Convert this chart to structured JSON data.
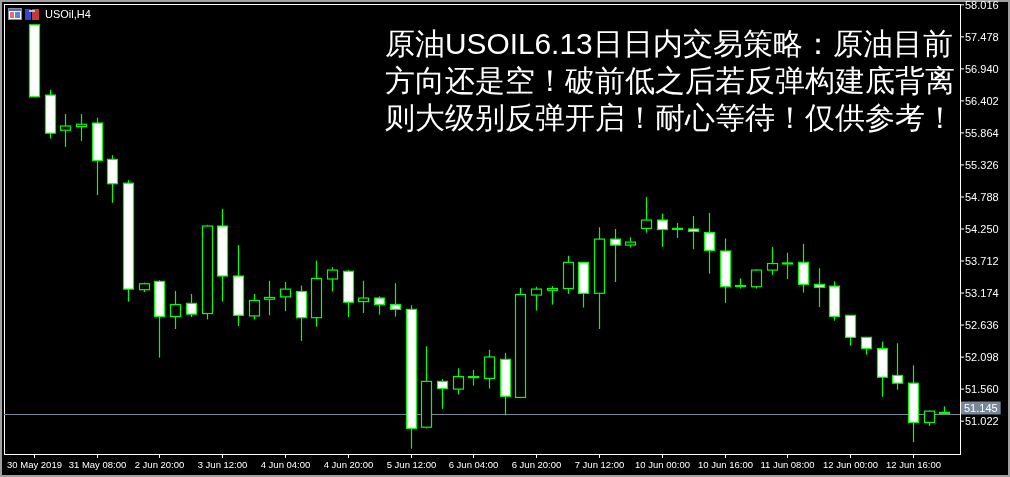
{
  "chart_data": {
    "type": "candlestick",
    "title": "USOil,H4",
    "annotations": [
      "原油USOIL6.13日日内交易策略：原油目前",
      "方向还是空！破前低之后若反弹构建底背离",
      "则大级别反弹开启！耐心等待！仅供参考！"
    ],
    "color": "#00ff00",
    "categories": [
      "30 May 2019",
      null,
      null,
      null,
      "31 May 08:00",
      null,
      null,
      null,
      "2 Jun 20:00",
      null,
      null,
      null,
      "3 Jun 12:00",
      null,
      null,
      null,
      "4 Jun 04:00",
      null,
      null,
      null,
      "4 Jun 20:00",
      null,
      null,
      null,
      "5 Jun 12:00",
      null,
      null,
      null,
      "6 Jun 04:00",
      null,
      null,
      null,
      "6 Jun 20:00",
      null,
      null,
      null,
      "7 Jun 12:00",
      null,
      null,
      null,
      "10 Jun 00:00",
      null,
      null,
      null,
      "10 Jun 16:00",
      null,
      null,
      null,
      "11 Jun 08:00",
      null,
      null,
      null,
      "12 Jun 00:00",
      null,
      null,
      null,
      "12 Jun 16:00",
      null,
      null
    ],
    "ohlc": [
      [
        57.68,
        57.68,
        56.47,
        56.47
      ],
      [
        56.5,
        56.59,
        55.77,
        55.86
      ],
      [
        55.91,
        56.18,
        55.63,
        55.98
      ],
      [
        55.97,
        56.18,
        55.73,
        56.01
      ],
      [
        56.03,
        56.12,
        54.82,
        55.4
      ],
      [
        55.42,
        55.49,
        54.69,
        55.01
      ],
      [
        55.02,
        55.07,
        53.03,
        53.24
      ],
      [
        53.23,
        53.35,
        53.19,
        53.33
      ],
      [
        53.37,
        53.39,
        52.09,
        52.78
      ],
      [
        52.78,
        53.21,
        52.57,
        52.98
      ],
      [
        53.0,
        53.16,
        52.77,
        52.82
      ],
      [
        52.83,
        54.32,
        52.73,
        54.3
      ],
      [
        54.3,
        54.59,
        53.03,
        53.46
      ],
      [
        53.46,
        53.98,
        52.62,
        52.8
      ],
      [
        52.79,
        53.16,
        52.73,
        53.05
      ],
      [
        53.07,
        53.38,
        52.8,
        53.1
      ],
      [
        53.11,
        53.36,
        52.87,
        53.24
      ],
      [
        53.2,
        53.3,
        52.37,
        52.76
      ],
      [
        52.76,
        53.72,
        52.61,
        53.42
      ],
      [
        53.41,
        53.61,
        53.2,
        53.56
      ],
      [
        53.54,
        53.56,
        52.77,
        53.02
      ],
      [
        53.03,
        53.38,
        52.84,
        53.09
      ],
      [
        53.09,
        53.12,
        52.81,
        52.98
      ],
      [
        52.98,
        53.34,
        52.78,
        52.9
      ],
      [
        52.9,
        52.97,
        50.56,
        50.9
      ],
      [
        50.92,
        52.28,
        50.9,
        51.69
      ],
      [
        51.69,
        51.73,
        51.23,
        51.57
      ],
      [
        51.56,
        51.91,
        51.47,
        51.77
      ],
      [
        51.77,
        51.88,
        51.62,
        51.76
      ],
      [
        51.74,
        52.22,
        51.57,
        52.1
      ],
      [
        52.06,
        52.17,
        51.12,
        51.44
      ],
      [
        51.42,
        53.26,
        51.42,
        53.15
      ],
      [
        53.14,
        53.28,
        52.88,
        53.24
      ],
      [
        53.22,
        53.29,
        52.98,
        53.25
      ],
      [
        53.25,
        53.8,
        53.16,
        53.69
      ],
      [
        53.69,
        53.69,
        52.93,
        53.17
      ],
      [
        53.17,
        54.28,
        52.57,
        54.08
      ],
      [
        54.08,
        54.25,
        53.36,
        53.98
      ],
      [
        53.98,
        54.11,
        53.94,
        54.03
      ],
      [
        54.26,
        54.79,
        54.19,
        54.4
      ],
      [
        54.4,
        54.51,
        53.95,
        54.24
      ],
      [
        54.26,
        54.35,
        54.1,
        54.25
      ],
      [
        54.25,
        54.47,
        53.91,
        54.21
      ],
      [
        54.19,
        54.52,
        53.5,
        53.89
      ],
      [
        53.88,
        54.09,
        53.01,
        53.28
      ],
      [
        53.3,
        53.42,
        53.25,
        53.29
      ],
      [
        53.28,
        53.57,
        53.25,
        53.56
      ],
      [
        53.56,
        53.95,
        53.48,
        53.67
      ],
      [
        53.68,
        53.85,
        53.41,
        53.67
      ],
      [
        53.69,
        54.0,
        53.18,
        53.32
      ],
      [
        53.32,
        53.59,
        52.94,
        53.27
      ],
      [
        53.29,
        53.37,
        52.71,
        52.78
      ],
      [
        52.8,
        52.8,
        52.29,
        52.43
      ],
      [
        52.43,
        52.43,
        52.14,
        52.24
      ],
      [
        52.24,
        52.36,
        51.43,
        51.76
      ],
      [
        51.79,
        52.33,
        51.55,
        51.66
      ],
      [
        51.66,
        51.96,
        50.67,
        51.0
      ],
      [
        51.0,
        51.2,
        50.94,
        51.19
      ],
      [
        51.17,
        51.27,
        51.15,
        51.15
      ]
    ],
    "ylim": [
      50.47,
      58.03
    ],
    "yticks": [
      58.016,
      57.478,
      {
        "value": 56.94,
        "label": "56.940"
      },
      56.402,
      55.864,
      55.326,
      54.788,
      {
        "value": 54.25,
        "label": "54.250"
      },
      53.712,
      53.174,
      52.636,
      52.098,
      {
        "value": 51.56,
        "label": "51.560"
      },
      51.022
    ],
    "ref_lines": [
      {
        "axis": "y",
        "value": 51.145,
        "label": "51.145",
        "color": "#778899"
      }
    ]
  }
}
